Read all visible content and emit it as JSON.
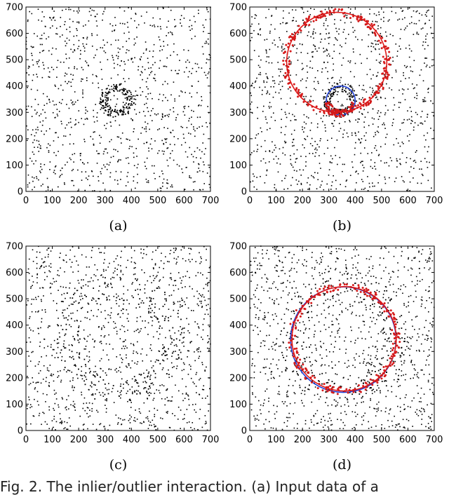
{
  "caption": "Fig. 2.  The inlier/outlier interaction. (a) Input data of a",
  "chart_data": [
    {
      "panel": "(a)",
      "type": "scatter",
      "xlim": [
        0,
        700
      ],
      "ylim": [
        0,
        700
      ],
      "xticks": [
        "0",
        "100",
        "200",
        "300",
        "400",
        "500",
        "600",
        "700"
      ],
      "yticks": [
        "0",
        "100",
        "200",
        "300",
        "400",
        "500",
        "600",
        "700"
      ],
      "grid": false,
      "background_points": 1000,
      "clusters": [
        {
          "type": "ring",
          "cx": 345,
          "cy": 345,
          "r": 50,
          "count": 170
        }
      ],
      "circles": []
    },
    {
      "panel": "(b)",
      "type": "scatter",
      "xlim": [
        0,
        700
      ],
      "ylim": [
        0,
        700
      ],
      "xticks": [
        "0",
        "100",
        "200",
        "300",
        "400",
        "500",
        "600",
        "700"
      ],
      "yticks": [
        "0",
        "100",
        "200",
        "300",
        "400",
        "500",
        "600",
        "700"
      ],
      "grid": false,
      "background_points": 1000,
      "clusters": [
        {
          "type": "ring",
          "cx": 345,
          "cy": 345,
          "r": 50,
          "count": 150
        }
      ],
      "circles": [
        {
          "cx": 345,
          "cy": 345,
          "r": 55,
          "color": "#1f3fd6"
        },
        {
          "cx": 330,
          "cy": 490,
          "r": 190,
          "color": "#e01818"
        }
      ],
      "highlighted_points": {
        "color": "#d41a1a",
        "near_circle": 1,
        "count": 230
      }
    },
    {
      "panel": "(c)",
      "type": "scatter",
      "xlim": [
        0,
        700
      ],
      "ylim": [
        0,
        700
      ],
      "xticks": [
        "0",
        "100",
        "200",
        "300",
        "400",
        "500",
        "600",
        "700"
      ],
      "yticks": [
        "0",
        "100",
        "200",
        "300",
        "400",
        "500",
        "600",
        "700"
      ],
      "grid": false,
      "background_points": 1150,
      "clusters": [
        {
          "type": "ring",
          "cx": 355,
          "cy": 345,
          "r": 200,
          "count": 180
        }
      ],
      "circles": []
    },
    {
      "panel": "(d)",
      "type": "scatter",
      "xlim": [
        0,
        700
      ],
      "ylim": [
        0,
        700
      ],
      "xticks": [
        "0",
        "100",
        "200",
        "300",
        "400",
        "500",
        "600",
        "700"
      ],
      "yticks": [
        "0",
        "100",
        "200",
        "300",
        "400",
        "500",
        "600",
        "700"
      ],
      "grid": false,
      "background_points": 1100,
      "clusters": [
        {
          "type": "ring",
          "cx": 355,
          "cy": 345,
          "r": 200,
          "count": 180
        }
      ],
      "circles": [
        {
          "cx": 355,
          "cy": 345,
          "r": 200,
          "color": "#1f3fd6"
        },
        {
          "cx": 358,
          "cy": 348,
          "r": 198,
          "color": "#e01818"
        }
      ],
      "highlighted_points": {
        "color": "#d41a1a",
        "near_circle": 1,
        "count": 220
      }
    }
  ]
}
